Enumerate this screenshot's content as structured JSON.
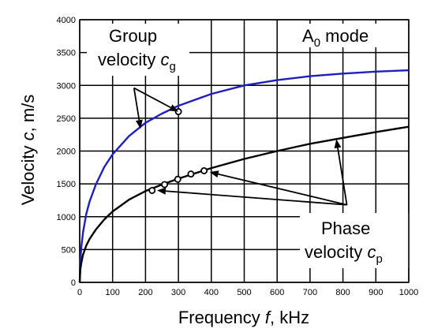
{
  "chart_data": {
    "type": "line",
    "title": "",
    "xlabel": {
      "pre": "Frequency ",
      "var": "f",
      "post": ", kHz"
    },
    "ylabel": {
      "pre": "Velocity ",
      "var": "c",
      "post": ", m/s"
    },
    "xlim": [
      0,
      1000
    ],
    "ylim": [
      0,
      4000
    ],
    "x_ticks": [
      "0",
      "100",
      "200",
      "300",
      "400",
      "500",
      "600",
      "700",
      "800",
      "900",
      "1000"
    ],
    "y_ticks": [
      "0",
      "500",
      "1000",
      "1500",
      "2000",
      "2500",
      "3000",
      "3500",
      "4000"
    ],
    "grid": true,
    "series": [
      {
        "name": "Group velocity",
        "color": "#1f1fbf",
        "x": [
          0,
          2,
          5,
          10,
          20,
          30,
          50,
          75,
          100,
          150,
          200,
          250,
          300,
          400,
          500,
          600,
          700,
          800,
          900,
          1000
        ],
        "y": [
          0,
          330,
          540,
          760,
          1040,
          1230,
          1500,
          1760,
          1950,
          2230,
          2430,
          2570,
          2690,
          2870,
          3000,
          3080,
          3140,
          3180,
          3210,
          3230
        ]
      },
      {
        "name": "Phase velocity",
        "color": "#000000",
        "x": [
          0,
          2,
          5,
          10,
          20,
          30,
          50,
          75,
          100,
          150,
          200,
          250,
          300,
          400,
          500,
          600,
          700,
          800,
          900,
          1000
        ],
        "y": [
          0,
          200,
          300,
          420,
          560,
          660,
          810,
          960,
          1080,
          1260,
          1390,
          1490,
          1580,
          1740,
          1880,
          2000,
          2110,
          2200,
          2290,
          2370
        ]
      }
    ],
    "markers": [
      {
        "series": "Group velocity",
        "x": 300,
        "y": 2600
      },
      {
        "series": "Phase velocity",
        "x": 220,
        "y": 1400
      },
      {
        "series": "Phase velocity",
        "x": 258,
        "y": 1490
      },
      {
        "series": "Phase velocity",
        "x": 298,
        "y": 1570
      },
      {
        "series": "Phase velocity",
        "x": 338,
        "y": 1650
      },
      {
        "series": "Phase velocity",
        "x": 378,
        "y": 1700
      }
    ],
    "annotations": {
      "group": {
        "line1": "Group",
        "line2_pre": "velocity ",
        "var": "c",
        "sub": "g"
      },
      "phase": {
        "line1": "Phase",
        "line2_pre": "velocity ",
        "var": "c",
        "sub": "p"
      },
      "mode": {
        "main": "A",
        "sub": "0",
        "post": " mode"
      }
    },
    "arrows": [
      {
        "from": [
          165,
          2960
        ],
        "to": [
          300,
          2600
        ]
      },
      {
        "from": [
          165,
          2960
        ],
        "to": [
          185,
          2340
        ]
      },
      {
        "from": [
          812,
          1180
        ],
        "to": [
          780,
          2180
        ]
      },
      {
        "from": [
          812,
          1180
        ],
        "to": [
          395,
          1680
        ]
      },
      {
        "from": [
          812,
          1180
        ],
        "to": [
          235,
          1400
        ]
      }
    ]
  }
}
